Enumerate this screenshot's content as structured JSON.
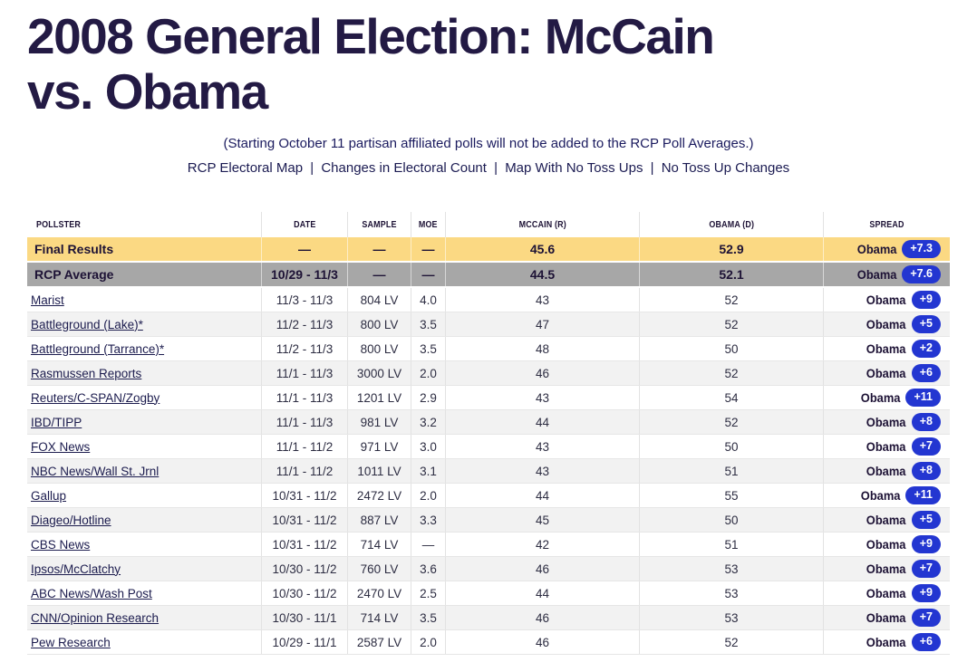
{
  "page": {
    "title_line1": "2008 General Election: McCain",
    "title_line2": "vs. Obama",
    "note": "(Starting October 11 partisan affiliated polls will not be added to the RCP Poll Averages.)",
    "nav_links": [
      "RCP Electoral Map",
      "Changes in Electoral Count",
      "Map With No Toss Ups",
      "No Toss Up Changes"
    ],
    "nav_separator": "|"
  },
  "colors": {
    "title_text": "#231A44",
    "final_row_bg": "#FBD983",
    "average_row_bg": "#A7A7A7",
    "alt_row_bg": "#F2F2F2",
    "spread_pill_bg": "#2336D1",
    "spread_pill_text": "#FFFFFF",
    "link_text": "#1C1C4E"
  },
  "table": {
    "columns": [
      "POLLSTER",
      "DATE",
      "SAMPLE",
      "MOE",
      "MCCAIN (R)",
      "OBAMA (D)",
      "SPREAD"
    ],
    "summary_rows": [
      {
        "type": "final",
        "pollster": "Final Results",
        "date": "—",
        "sample": "—",
        "moe": "—",
        "mccain": "45.6",
        "obama": "52.9",
        "spread_winner": "Obama",
        "spread_value": "+7.3"
      },
      {
        "type": "average",
        "pollster": "RCP Average",
        "date": "10/29 - 11/3",
        "sample": "—",
        "moe": "—",
        "mccain": "44.5",
        "obama": "52.1",
        "spread_winner": "Obama",
        "spread_value": "+7.6"
      }
    ],
    "rows": [
      {
        "pollster": "Marist",
        "date": "11/3 - 11/3",
        "sample": "804 LV",
        "moe": "4.0",
        "mccain": "43",
        "obama": "52",
        "spread_winner": "Obama",
        "spread_value": "+9"
      },
      {
        "pollster": "Battleground (Lake)*",
        "date": "11/2 - 11/3",
        "sample": "800 LV",
        "moe": "3.5",
        "mccain": "47",
        "obama": "52",
        "spread_winner": "Obama",
        "spread_value": "+5"
      },
      {
        "pollster": "Battleground (Tarrance)*",
        "date": "11/2 - 11/3",
        "sample": "800 LV",
        "moe": "3.5",
        "mccain": "48",
        "obama": "50",
        "spread_winner": "Obama",
        "spread_value": "+2"
      },
      {
        "pollster": "Rasmussen Reports",
        "date": "11/1 - 11/3",
        "sample": "3000 LV",
        "moe": "2.0",
        "mccain": "46",
        "obama": "52",
        "spread_winner": "Obama",
        "spread_value": "+6"
      },
      {
        "pollster": "Reuters/C-SPAN/Zogby",
        "date": "11/1 - 11/3",
        "sample": "1201 LV",
        "moe": "2.9",
        "mccain": "43",
        "obama": "54",
        "spread_winner": "Obama",
        "spread_value": "+11"
      },
      {
        "pollster": "IBD/TIPP",
        "date": "11/1 - 11/3",
        "sample": "981 LV",
        "moe": "3.2",
        "mccain": "44",
        "obama": "52",
        "spread_winner": "Obama",
        "spread_value": "+8"
      },
      {
        "pollster": "FOX News",
        "date": "11/1 - 11/2",
        "sample": "971 LV",
        "moe": "3.0",
        "mccain": "43",
        "obama": "50",
        "spread_winner": "Obama",
        "spread_value": "+7"
      },
      {
        "pollster": "NBC News/Wall St. Jrnl",
        "date": "11/1 - 11/2",
        "sample": "1011 LV",
        "moe": "3.1",
        "mccain": "43",
        "obama": "51",
        "spread_winner": "Obama",
        "spread_value": "+8"
      },
      {
        "pollster": "Gallup",
        "date": "10/31 - 11/2",
        "sample": "2472 LV",
        "moe": "2.0",
        "mccain": "44",
        "obama": "55",
        "spread_winner": "Obama",
        "spread_value": "+11"
      },
      {
        "pollster": "Diageo/Hotline",
        "date": "10/31 - 11/2",
        "sample": "887 LV",
        "moe": "3.3",
        "mccain": "45",
        "obama": "50",
        "spread_winner": "Obama",
        "spread_value": "+5"
      },
      {
        "pollster": "CBS News",
        "date": "10/31 - 11/2",
        "sample": "714 LV",
        "moe": "—",
        "mccain": "42",
        "obama": "51",
        "spread_winner": "Obama",
        "spread_value": "+9"
      },
      {
        "pollster": "Ipsos/McClatchy",
        "date": "10/30 - 11/2",
        "sample": "760 LV",
        "moe": "3.6",
        "mccain": "46",
        "obama": "53",
        "spread_winner": "Obama",
        "spread_value": "+7"
      },
      {
        "pollster": "ABC News/Wash Post",
        "date": "10/30 - 11/2",
        "sample": "2470 LV",
        "moe": "2.5",
        "mccain": "44",
        "obama": "53",
        "spread_winner": "Obama",
        "spread_value": "+9"
      },
      {
        "pollster": "CNN/Opinion Research",
        "date": "10/30 - 11/1",
        "sample": "714 LV",
        "moe": "3.5",
        "mccain": "46",
        "obama": "53",
        "spread_winner": "Obama",
        "spread_value": "+7"
      },
      {
        "pollster": "Pew Research",
        "date": "10/29 - 11/1",
        "sample": "2587 LV",
        "moe": "2.0",
        "mccain": "46",
        "obama": "52",
        "spread_winner": "Obama",
        "spread_value": "+6"
      }
    ]
  }
}
